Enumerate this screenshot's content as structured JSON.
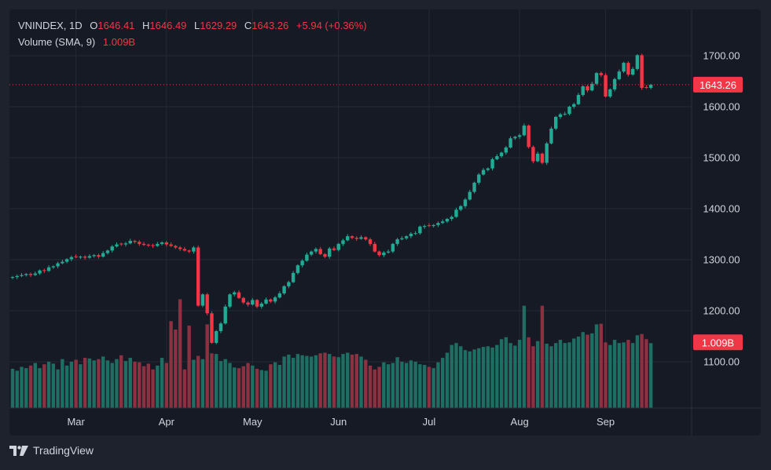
{
  "header": {
    "symbol": "VNINDEX",
    "interval": "1D",
    "open_label": "O",
    "open": "1646.41",
    "high_label": "H",
    "high": "1646.49",
    "low_label": "L",
    "low": "1629.29",
    "close_label": "C",
    "close": "1643.26",
    "change": "+5.94 (+0.36%)",
    "volume_label": "Volume (SMA, 9)",
    "volume_value": "1.009B"
  },
  "price_axis": {
    "ticks": [
      "1700.00",
      "1600.00",
      "1500.00",
      "1400.00",
      "1300.00",
      "1200.00",
      "1100.00"
    ],
    "last_price_label": "1643.26",
    "last_volume_label": "1.009B"
  },
  "time_axis": {
    "labels": [
      "Mar",
      "Apr",
      "May",
      "Jun",
      "Jul",
      "Aug",
      "Sep"
    ]
  },
  "brand": {
    "name": "TradingView"
  },
  "colors": {
    "up": "#22ab94",
    "down": "#f23645",
    "up_volume": "#1f6e63",
    "down_volume": "#8c3141",
    "background": "#161a25",
    "grid": "#252936",
    "text": "#d1d4dc"
  },
  "chart_data": {
    "type": "candlestick",
    "title": "VNINDEX, 1D",
    "ylim": [
      1130,
      1735
    ],
    "last_price": 1643.26,
    "last_volume_sma": "1.009B",
    "x_month_markers": [
      {
        "label": "Mar",
        "index": 14
      },
      {
        "label": "Apr",
        "index": 34
      },
      {
        "label": "May",
        "index": 53
      },
      {
        "label": "Jun",
        "index": 72
      },
      {
        "label": "Jul",
        "index": 92
      },
      {
        "label": "Aug",
        "index": 112
      },
      {
        "label": "Sep",
        "index": 131
      }
    ],
    "closes": [
      1266,
      1268,
      1270,
      1272,
      1270,
      1273,
      1279,
      1278,
      1285,
      1287,
      1293,
      1296,
      1301,
      1305,
      1305,
      1306,
      1304,
      1307,
      1309,
      1306,
      1313,
      1318,
      1326,
      1330,
      1330,
      1332,
      1337,
      1335,
      1331,
      1329,
      1328,
      1327,
      1331,
      1334,
      1330,
      1327,
      1324,
      1321,
      1318,
      1316,
      1324,
      1210,
      1232,
      1195,
      1137,
      1160,
      1175,
      1208,
      1232,
      1236,
      1225,
      1216,
      1212,
      1221,
      1208,
      1214,
      1222,
      1218,
      1226,
      1234,
      1248,
      1256,
      1274,
      1289,
      1298,
      1310,
      1316,
      1321,
      1311,
      1306,
      1322,
      1319,
      1331,
      1338,
      1346,
      1343,
      1341,
      1344,
      1340,
      1331,
      1316,
      1309,
      1314,
      1316,
      1331,
      1340,
      1342,
      1346,
      1351,
      1352,
      1365,
      1366,
      1366,
      1368,
      1372,
      1375,
      1380,
      1384,
      1398,
      1405,
      1418,
      1433,
      1451,
      1467,
      1476,
      1479,
      1497,
      1503,
      1510,
      1520,
      1538,
      1541,
      1544,
      1563,
      1521,
      1493,
      1508,
      1490,
      1528,
      1557,
      1580,
      1585,
      1586,
      1600,
      1605,
      1623,
      1640,
      1632,
      1645,
      1666,
      1662,
      1620,
      1634,
      1654,
      1669,
      1686,
      1663,
      1674,
      1701,
      1637,
      1637,
      1643
    ],
    "volumes_B": [
      0.61,
      0.58,
      0.64,
      0.62,
      0.66,
      0.7,
      0.62,
      0.68,
      0.72,
      0.69,
      0.6,
      0.76,
      0.66,
      0.72,
      0.75,
      0.68,
      0.78,
      0.77,
      0.74,
      0.76,
      0.8,
      0.74,
      0.7,
      0.76,
      0.82,
      0.73,
      0.78,
      0.72,
      0.71,
      0.65,
      0.69,
      0.6,
      0.66,
      0.78,
      0.7,
      1.35,
      1.22,
      1.69,
      0.6,
      1.28,
      0.75,
      0.81,
      0.76,
      1.3,
      0.85,
      0.84,
      0.73,
      0.76,
      0.7,
      0.63,
      0.62,
      0.65,
      0.7,
      0.66,
      0.61,
      0.59,
      0.58,
      0.68,
      0.71,
      0.67,
      0.8,
      0.83,
      0.78,
      0.84,
      0.82,
      0.81,
      0.8,
      0.82,
      0.85,
      0.86,
      0.84,
      0.8,
      0.79,
      0.84,
      0.86,
      0.83,
      0.84,
      0.8,
      0.75,
      0.66,
      0.6,
      0.64,
      0.71,
      0.68,
      0.7,
      0.79,
      0.72,
      0.7,
      0.74,
      0.72,
      0.68,
      0.67,
      0.64,
      0.62,
      0.71,
      0.78,
      0.86,
      0.98,
      1.01,
      0.96,
      0.9,
      0.88,
      0.91,
      0.93,
      0.95,
      0.96,
      0.94,
      0.98,
      1.07,
      1.1,
      1.01,
      0.97,
      1.06,
      1.59,
      1.1,
      0.96,
      1.04,
      1.59,
      1.0,
      0.96,
      1.01,
      1.06,
      1.01,
      1.02,
      1.08,
      1.11,
      1.18,
      1.14,
      1.16,
      1.3,
      1.31,
      1.02,
      0.98,
      1.06,
      1.01,
      1.02,
      1.06,
      1.01,
      1.13,
      1.15,
      1.07,
      1.009
    ],
    "up_flags": [
      1,
      1,
      1,
      1,
      0,
      1,
      1,
      0,
      1,
      1,
      1,
      1,
      1,
      1,
      0,
      1,
      0,
      1,
      1,
      0,
      1,
      1,
      1,
      1,
      0,
      1,
      1,
      0,
      0,
      0,
      0,
      0,
      1,
      1,
      0,
      0,
      0,
      0,
      0,
      0,
      1,
      0,
      1,
      0,
      0,
      1,
      1,
      1,
      1,
      1,
      0,
      0,
      0,
      1,
      0,
      1,
      1,
      0,
      1,
      1,
      1,
      1,
      1,
      1,
      1,
      1,
      1,
      1,
      0,
      0,
      1,
      0,
      1,
      1,
      1,
      0,
      0,
      1,
      0,
      0,
      0,
      0,
      1,
      1,
      1,
      1,
      1,
      1,
      1,
      1,
      1,
      1,
      0,
      1,
      1,
      1,
      1,
      1,
      1,
      1,
      1,
      1,
      1,
      1,
      1,
      1,
      1,
      1,
      1,
      1,
      1,
      1,
      1,
      1,
      0,
      0,
      1,
      0,
      1,
      1,
      1,
      1,
      1,
      1,
      1,
      1,
      1,
      0,
      1,
      1,
      0,
      0,
      1,
      1,
      1,
      1,
      0,
      1,
      1,
      0,
      0,
      1
    ]
  }
}
